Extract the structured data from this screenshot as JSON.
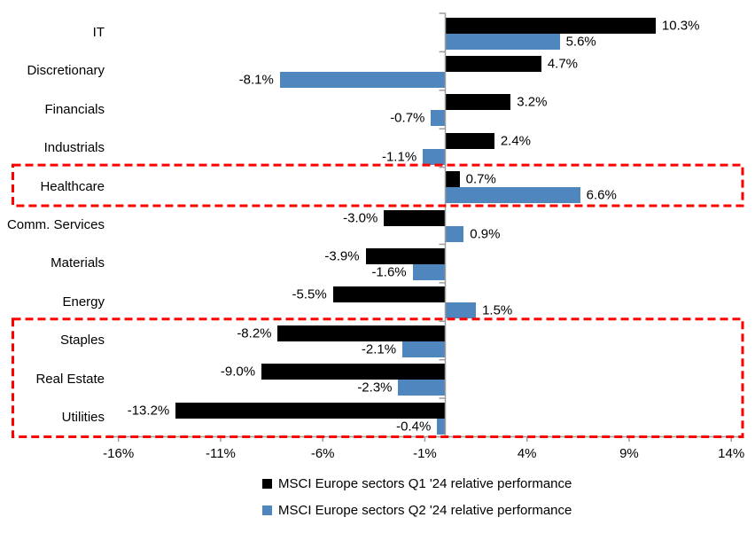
{
  "chart_data": {
    "type": "bar",
    "orientation": "horizontal",
    "title": "",
    "categories": [
      "IT",
      "Discretionary",
      "Financials",
      "Industrials",
      "Healthcare",
      "Comm. Services",
      "Materials",
      "Energy",
      "Staples",
      "Real Estate",
      "Utilities"
    ],
    "series": [
      {
        "name": "MSCI Europe sectors Q1 '24 relative performance",
        "color": "#000000",
        "values": [
          10.3,
          4.7,
          3.2,
          2.4,
          0.7,
          -3.0,
          -3.9,
          -5.5,
          -8.2,
          -9.0,
          -13.2
        ],
        "labels": [
          "10.3%",
          "4.7%",
          "3.2%",
          "2.4%",
          "0.7%",
          "-3.0%",
          "-3.9%",
          "-5.5%",
          "-8.2%",
          "-9.0%",
          "-13.2%"
        ]
      },
      {
        "name": "MSCI Europe sectors Q2 '24 relative performance",
        "color": "#4F86BD",
        "values": [
          5.6,
          -8.1,
          -0.7,
          -1.1,
          6.6,
          0.9,
          -1.6,
          1.5,
          -2.1,
          -2.3,
          -0.4
        ],
        "labels": [
          "5.6%",
          "-8.1%",
          "-0.7%",
          "-1.1%",
          "6.6%",
          "0.9%",
          "-1.6%",
          "1.5%",
          "-2.1%",
          "-2.3%",
          "-0.4%"
        ]
      }
    ],
    "xlim": [
      -16.45,
      14.5
    ],
    "x_ticks": [
      -16,
      -11,
      -6,
      -1,
      4,
      9,
      14
    ],
    "x_tick_labels": [
      "-16%",
      "-11%",
      "-6%",
      "-1%",
      "4%",
      "9%",
      "14%"
    ],
    "value_suffix": "%",
    "axis_color": "#9E9E9E",
    "highlight_color": "#FF0000",
    "highlights": [
      {
        "categories": [
          "Healthcare"
        ]
      },
      {
        "categories": [
          "Staples",
          "Real Estate",
          "Utilities"
        ]
      }
    ],
    "legend_position": "bottom",
    "grid": "off"
  }
}
